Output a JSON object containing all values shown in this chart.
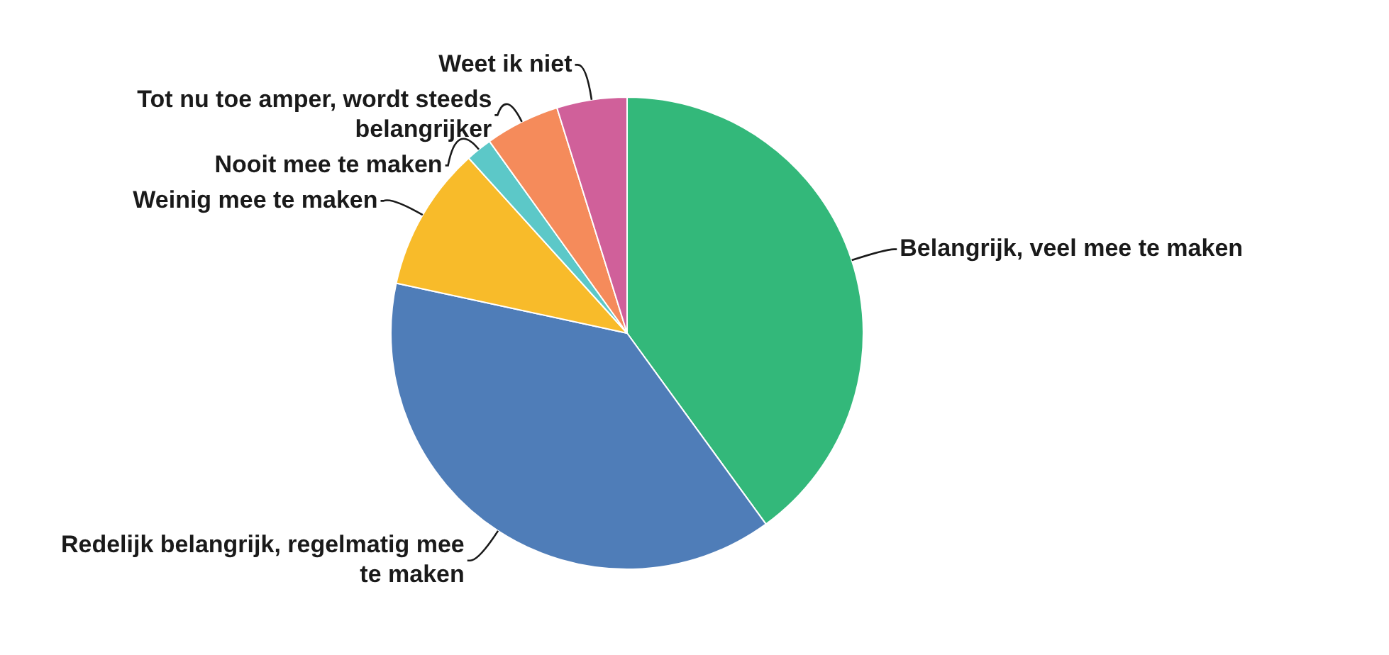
{
  "chart_data": {
    "type": "pie",
    "categories": [
      "Belangrijk, veel mee te maken",
      "Redelijk belangrijk, regelmatig mee te maken",
      "Weinig mee te maken",
      "Nooit mee te maken",
      "Tot nu toe amper, wordt steeds belangrijker",
      "Weet ik niet"
    ],
    "values": [
      40,
      38.4,
      9.9,
      1.8,
      5.1,
      4.8
    ],
    "colors": [
      "#33b87a",
      "#4f7db8",
      "#f8bb2a",
      "#5cc8c8",
      "#f58b5b",
      "#d0609a"
    ]
  }
}
